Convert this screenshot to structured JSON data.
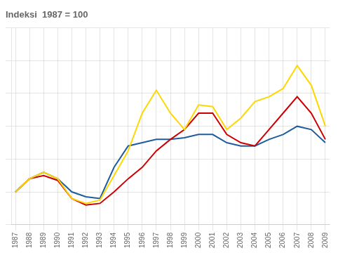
{
  "chart_data": {
    "type": "line",
    "title": "Indeksi  1987 = 100",
    "x": [
      1987,
      1988,
      1989,
      1990,
      1991,
      1992,
      1993,
      1994,
      1995,
      1996,
      1997,
      1998,
      1999,
      2000,
      2001,
      2002,
      2003,
      2004,
      2005,
      2006,
      2007,
      2008,
      2009
    ],
    "series": [
      {
        "color": "#FFD700",
        "values": [
          100,
          108,
          112,
          108,
          96,
          93,
          95,
          110,
          125,
          148,
          162,
          148,
          138,
          153,
          152,
          138,
          145,
          155,
          158,
          163,
          177,
          165,
          140
        ]
      },
      {
        "color": "#CC0000",
        "values": [
          100,
          108,
          110,
          107,
          96,
          92,
          93,
          100,
          108,
          115,
          125,
          132,
          138,
          148,
          148,
          135,
          130,
          128,
          138,
          148,
          158,
          148,
          132
        ]
      },
      {
        "color": "#1F5C9E",
        "values": [
          100,
          108,
          112,
          108,
          100,
          97,
          96,
          115,
          128,
          130,
          132,
          132,
          133,
          135,
          135,
          130,
          128,
          128,
          132,
          135,
          140,
          138,
          130
        ]
      }
    ],
    "xlim": [
      1986.7,
      2009.3
    ],
    "xticks": [
      1987,
      1988,
      1989,
      1990,
      1991,
      1992,
      1993,
      1994,
      1995,
      1996,
      1997,
      1998,
      1999,
      2000,
      2001,
      2002,
      2003,
      2004,
      2005,
      2006,
      2007,
      2008,
      2009
    ],
    "ylim": [
      80,
      200
    ],
    "yticks": [
      80,
      100,
      120,
      140,
      160,
      180,
      200
    ],
    "grid": true,
    "tick_labels": "x"
  }
}
